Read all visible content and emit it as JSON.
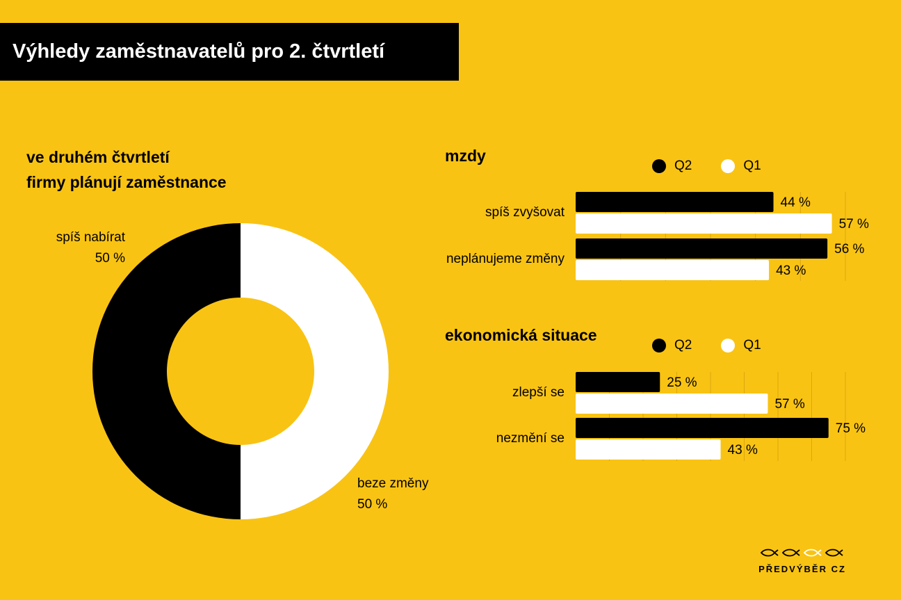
{
  "header": {
    "title": "Výhledy zaměstnavatelů pro 2. čtvrtletí"
  },
  "colors": {
    "background": "#F9C313",
    "q2": "#000000",
    "q1": "#FFFFFF",
    "grid": "#D9A810"
  },
  "donut": {
    "title_line1": "ve druhém čtvrtletí",
    "title_line2": "firmy plánují zaměstnance",
    "slices": [
      {
        "label": "spíš nabírat",
        "value_label": "50 %"
      },
      {
        "label": "beze změny",
        "value_label": "50 %"
      }
    ]
  },
  "sections": [
    {
      "title": "mzdy",
      "legend": {
        "q2": "Q2",
        "q1": "Q1"
      }
    },
    {
      "title": "ekonomická situace",
      "legend": {
        "q2": "Q2",
        "q1": "Q1"
      }
    }
  ],
  "logo": {
    "text": "PŘEDVÝBĚR CZ"
  },
  "chart_data": [
    {
      "type": "pie",
      "title": "ve druhém čtvrtletí firmy plánují zaměstnance",
      "donut": true,
      "categories": [
        "spíš nabírat",
        "beze změny"
      ],
      "values": [
        50,
        50
      ],
      "colors": [
        "#000000",
        "#FFFFFF"
      ]
    },
    {
      "type": "bar",
      "orientation": "horizontal",
      "title": "mzdy",
      "categories": [
        "spíš zvyšovat",
        "neplánujeme změny"
      ],
      "series": [
        {
          "name": "Q2",
          "values": [
            44,
            56
          ],
          "labels": [
            "44 %",
            "56 %"
          ],
          "color": "#000000"
        },
        {
          "name": "Q1",
          "values": [
            57,
            43
          ],
          "labels": [
            "57 %",
            "43 %"
          ],
          "color": "#FFFFFF"
        }
      ],
      "xlim": [
        0,
        60
      ],
      "legend": "top",
      "grid": true
    },
    {
      "type": "bar",
      "orientation": "horizontal",
      "title": "ekonomická situace",
      "categories": [
        "zlepší se",
        "nezmění se"
      ],
      "series": [
        {
          "name": "Q2",
          "values": [
            25,
            75
          ],
          "labels": [
            "25 %",
            "75 %"
          ],
          "color": "#000000"
        },
        {
          "name": "Q1",
          "values": [
            57,
            43
          ],
          "labels": [
            "57 %",
            "43 %"
          ],
          "color": "#FFFFFF"
        }
      ],
      "xlim": [
        0,
        80
      ],
      "legend": "top",
      "grid": true
    }
  ]
}
